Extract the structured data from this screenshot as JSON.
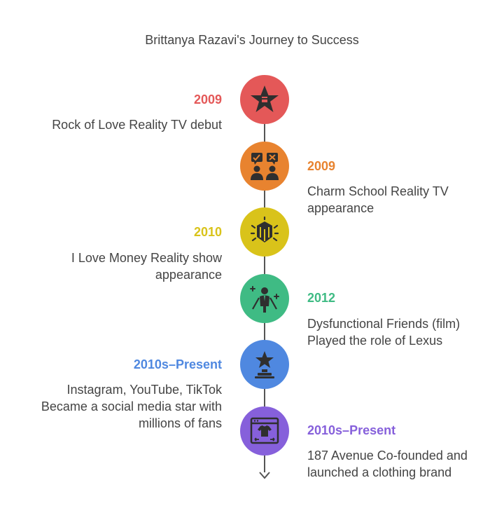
{
  "title": "Brittanya Razavi's Journey to Success",
  "events": [
    {
      "year": "2009",
      "line1": "Rock of Love Reality TV debut",
      "line2": "",
      "color": "#e45858",
      "icon": "star-icon"
    },
    {
      "year": "2009",
      "line1": "Charm School Reality TV",
      "line2": "appearance",
      "color": "#e8832f",
      "icon": "voting-people-icon"
    },
    {
      "year": "2010",
      "line1": "I Love Money Reality show",
      "line2": "appearance",
      "color": "#d9c31a",
      "icon": "cube-icon"
    },
    {
      "year": "2012",
      "line1": "Dysfunctional Friends (film)",
      "line2": "Played the role of Lexus",
      "color": "#3fbb84",
      "icon": "actor-spotlight-icon"
    },
    {
      "year": "2010s–Present",
      "line1": "Instagram, YouTube, TikTok",
      "line2": "Became a social media star with",
      "line3": "millions of fans",
      "color": "#4f88e0",
      "icon": "trophy-star-icon"
    },
    {
      "year": "2010s–Present",
      "line1": "187 Avenue Co-founded and",
      "line2": "launched a clothing brand",
      "color": "#8660db",
      "icon": "clothing-window-icon"
    }
  ]
}
